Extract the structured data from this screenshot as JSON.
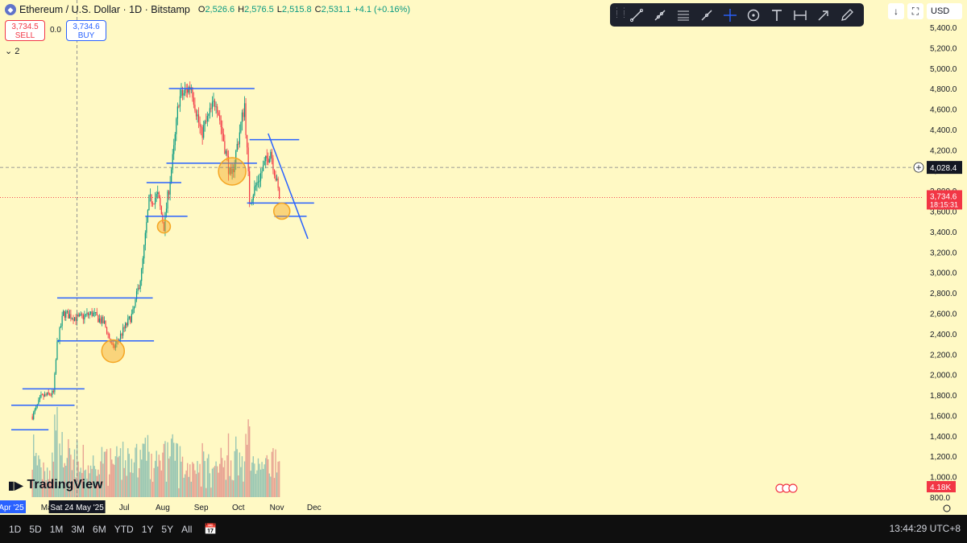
{
  "header": {
    "symbol": "Ethereum / U.S. Dollar · 1D · Bitstamp",
    "ohlc": {
      "o_label": "O",
      "o": "2,526.6",
      "h_label": "H",
      "h": "2,576.5",
      "l_label": "L",
      "l": "2,515.8",
      "c_label": "C",
      "c": "2,531.1",
      "change": "+4.1 (+0.16%)"
    }
  },
  "trade": {
    "sell_price": "3,734.5",
    "sell_label": "SELL",
    "spread": "0.0",
    "buy_price": "3,734.6",
    "buy_label": "BUY"
  },
  "indicator_toggle": "2",
  "currency": "USD",
  "toolbar_icons": [
    "trend-line-icon",
    "ray-icon",
    "parallel-channel-icon",
    "brush-path-icon",
    "crosshair-icon",
    "target-icon",
    "text-icon",
    "measure-icon",
    "arrow-icon",
    "pencil-icon"
  ],
  "price_labels": {
    "crosshair": "4,028.4",
    "current": "3,734.6",
    "countdown": "18:15:31",
    "volume": "4.18K"
  },
  "x_label_highlight": "Sat 24 May '25",
  "watermark": "TradingView",
  "bottom": {
    "timeframes": [
      "1D",
      "5D",
      "1M",
      "3M",
      "6M",
      "YTD",
      "1Y",
      "5Y",
      "All"
    ],
    "clock": "13:44:29 UTC+8"
  },
  "colors": {
    "background": "#fff9c4",
    "up": "#089981",
    "down": "#f23645",
    "line": "#2962ff",
    "circle": "#f5a623"
  },
  "chart_data": {
    "type": "candlestick",
    "y_ticks": [
      "800.0",
      "1,000.0",
      "1,200.0",
      "1,400.0",
      "1,600.0",
      "1,800.0",
      "2,000.0",
      "2,200.0",
      "2,400.0",
      "2,600.0",
      "2,800.0",
      "3,000.0",
      "3,200.0",
      "3,400.0",
      "3,600.0",
      "3,800.0",
      "4,000.0",
      "4,200.0",
      "4,400.0",
      "4,600.0",
      "4,800.0",
      "5,000.0",
      "5,200.0",
      "5,400.0"
    ],
    "x_ticks": [
      "Apr '25",
      "May",
      "Jun",
      "Jul",
      "Aug",
      "Sep",
      "Oct",
      "Nov",
      "Dec"
    ],
    "ylim": [
      800,
      5400
    ],
    "price_path": [
      [
        "2025-04-18",
        1590
      ],
      [
        "2025-04-25",
        1780
      ],
      [
        "2025-05-05",
        1820
      ],
      [
        "2025-05-08",
        2300
      ],
      [
        "2025-05-13",
        2600
      ],
      [
        "2025-05-25",
        2550
      ],
      [
        "2025-06-05",
        2600
      ],
      [
        "2025-06-15",
        2500
      ],
      [
        "2025-06-22",
        2250
      ],
      [
        "2025-07-01",
        2450
      ],
      [
        "2025-07-08",
        2600
      ],
      [
        "2025-07-15",
        3000
      ],
      [
        "2025-07-21",
        3700
      ],
      [
        "2025-07-28",
        3750
      ],
      [
        "2025-08-02",
        3450
      ],
      [
        "2025-08-10",
        4200
      ],
      [
        "2025-08-14",
        4700
      ],
      [
        "2025-08-24",
        4830
      ],
      [
        "2025-09-01",
        4350
      ],
      [
        "2025-09-13",
        4700
      ],
      [
        "2025-09-25",
        3900
      ],
      [
        "2025-10-06",
        4650
      ],
      [
        "2025-10-10",
        3700
      ],
      [
        "2025-10-27",
        4200
      ],
      [
        "2025-11-03",
        3734.6
      ]
    ],
    "horizontal_levels": [
      {
        "price": 1460,
        "from": "2025-04-01",
        "to": "2025-05-01"
      },
      {
        "price": 1700,
        "from": "2025-04-01",
        "to": "2025-05-22"
      },
      {
        "price": 1860,
        "from": "2025-04-10",
        "to": "2025-05-30"
      },
      {
        "price": 2330,
        "from": "2025-05-08",
        "to": "2025-07-25"
      },
      {
        "price": 2750,
        "from": "2025-05-08",
        "to": "2025-07-24"
      },
      {
        "price": 3550,
        "from": "2025-07-18",
        "to": "2025-08-21"
      },
      {
        "price": 3880,
        "from": "2025-07-19",
        "to": "2025-08-16"
      },
      {
        "price": 4070,
        "from": "2025-08-04",
        "to": "2025-10-16"
      },
      {
        "price": 4800,
        "from": "2025-08-06",
        "to": "2025-10-14"
      },
      {
        "price": 4300,
        "from": "2025-10-10",
        "to": "2025-11-19"
      },
      {
        "price": 3680,
        "from": "2025-10-08",
        "to": "2025-12-01"
      },
      {
        "price": 3550,
        "from": "2025-10-30",
        "to": "2025-11-25"
      }
    ],
    "trendline": {
      "from": [
        "2025-10-25",
        4360
      ],
      "to": [
        "2025-11-26",
        3330
      ]
    },
    "highlight_circles": [
      {
        "date": "2025-06-22",
        "price": 2230
      },
      {
        "date": "2025-08-02",
        "price": 3450
      },
      {
        "date": "2025-09-26",
        "price": 3990
      },
      {
        "date": "2025-11-05",
        "price": 3600
      }
    ],
    "crosshair": {
      "date": "2025-05-24",
      "price": 4028.4
    },
    "current_price": 3734.6
  }
}
